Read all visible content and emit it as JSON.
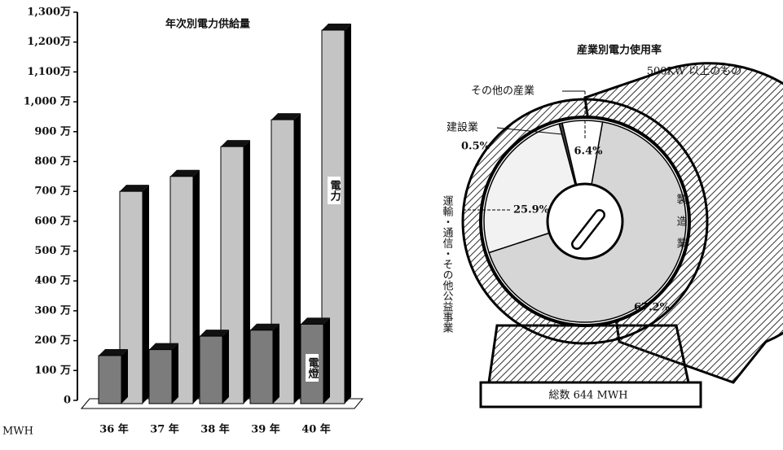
{
  "chart_data": [
    {
      "type": "bar",
      "title": "年次別電力供給量",
      "y_label": "MWH",
      "categories": [
        "36 年",
        "37 年",
        "38 年",
        "39 年",
        "40 年"
      ],
      "series": [
        {
          "name": "電力",
          "color": "#c4c4c4",
          "values": [
            700,
            750,
            850,
            940,
            1240
          ]
        },
        {
          "name": "電燈",
          "color": "#7c7c7c",
          "values": [
            150,
            170,
            215,
            235,
            255
          ]
        }
      ],
      "ylim": [
        0,
        1300
      ],
      "yticks": [
        0,
        {
          "value": 100,
          "label": "100 万"
        },
        {
          "value": 200,
          "label": "200 万"
        },
        {
          "value": 300,
          "label": "300 万"
        },
        {
          "value": 400,
          "label": "400 万"
        },
        {
          "value": 500,
          "label": "500 万"
        },
        {
          "value": 600,
          "label": "600 万"
        },
        {
          "value": 700,
          "label": "700 万"
        },
        {
          "value": 800,
          "label": "800 万"
        },
        {
          "value": 900,
          "label": "900 万"
        },
        {
          "value": 1000,
          "label": "1,000 万"
        },
        {
          "value": 1100,
          "label": "1,100万"
        },
        {
          "value": 1200,
          "label": "1,200万"
        },
        {
          "value": 1300,
          "label": "1,300万"
        }
      ]
    },
    {
      "type": "pie",
      "title": "産業別電力使用率",
      "subtitle": "500KW 以上のもの",
      "note": "総数 644 MWH",
      "categories": [
        "製造業",
        "運輸・通信・その他公益事業",
        "建設業",
        "その他の産業"
      ],
      "values": [
        67.2,
        25.9,
        0.5,
        6.4
      ],
      "value_labels": [
        "67.2%",
        "25.9%",
        "0.5%",
        "6.4%"
      ],
      "colors": [
        "#d6d6d6",
        "#f2f2f2",
        "#444444",
        "#ffffff"
      ]
    }
  ]
}
